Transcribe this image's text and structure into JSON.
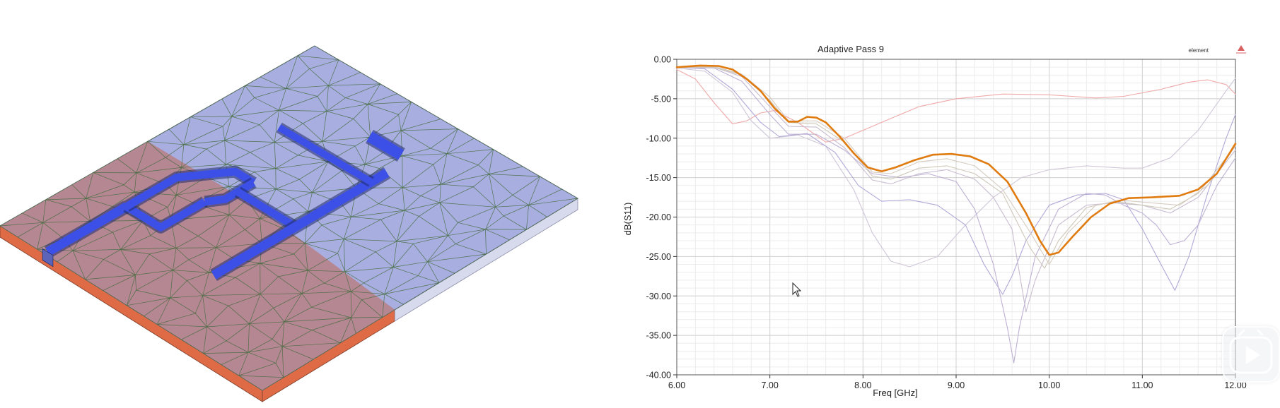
{
  "colors": {
    "substrate_top": "#a9aee0",
    "ground_plane": "#b6838c",
    "substrate_edge": "#de6b45",
    "mesh_line": "#3f6a38",
    "microstrip": "#3c50e8",
    "final_curve": "#e07b10"
  },
  "icons": [
    "mouse-cursor-icon",
    "play-icon"
  ],
  "chart_data": {
    "type": "line",
    "title": "Adaptive Pass 9",
    "legend_label": "element",
    "legend_placement": "top-right",
    "xlabel": "Freq [GHz]",
    "ylabel": "dB(S11)",
    "xlim": [
      6.0,
      12.0
    ],
    "ylim": [
      -40.0,
      0.0
    ],
    "grid": true,
    "x_ticks": [
      "6.00",
      "7.00",
      "8.00",
      "9.00",
      "10.00",
      "11.00",
      "12.00"
    ],
    "y_ticks": [
      "0.00",
      "-5.00",
      "-10.00",
      "-15.00",
      "-20.00",
      "-25.00",
      "-30.00",
      "-35.00",
      "-40.00"
    ],
    "series": [
      {
        "color": "#f0a8a8",
        "width": 1.1,
        "final": false,
        "points": [
          [
            6.0,
            -1.3
          ],
          [
            6.2,
            -2.5
          ],
          [
            6.4,
            -5.5
          ],
          [
            6.6,
            -8.2
          ],
          [
            6.75,
            -7.8
          ],
          [
            6.9,
            -6.8
          ],
          [
            7.05,
            -6.5
          ],
          [
            7.3,
            -8.0
          ],
          [
            7.6,
            -10.5
          ],
          [
            7.8,
            -10.0
          ],
          [
            8.0,
            -9.0
          ],
          [
            8.3,
            -7.5
          ],
          [
            8.6,
            -6.0
          ],
          [
            9.0,
            -5.0
          ],
          [
            9.5,
            -4.4
          ],
          [
            10.0,
            -4.5
          ],
          [
            10.5,
            -4.9
          ],
          [
            10.8,
            -4.7
          ],
          [
            11.2,
            -3.8
          ],
          [
            11.5,
            -2.9
          ],
          [
            11.7,
            -2.6
          ],
          [
            11.9,
            -3.2
          ],
          [
            12.0,
            -4.4
          ]
        ]
      },
      {
        "color": "#cfc6d8",
        "width": 1.1,
        "final": false,
        "points": [
          [
            6.0,
            -1.1
          ],
          [
            6.3,
            -1.5
          ],
          [
            6.6,
            -4.2
          ],
          [
            6.8,
            -7.8
          ],
          [
            7.0,
            -10.0
          ],
          [
            7.3,
            -9.6
          ],
          [
            7.6,
            -11.0
          ],
          [
            7.9,
            -16.5
          ],
          [
            8.1,
            -22.0
          ],
          [
            8.3,
            -25.6
          ],
          [
            8.5,
            -26.3
          ],
          [
            8.8,
            -25.0
          ],
          [
            9.1,
            -21.0
          ],
          [
            9.4,
            -17.5
          ],
          [
            9.7,
            -15.0
          ],
          [
            10.0,
            -14.0
          ],
          [
            10.4,
            -13.5
          ],
          [
            10.8,
            -13.8
          ],
          [
            11.0,
            -13.8
          ],
          [
            11.3,
            -12.5
          ],
          [
            11.6,
            -9.0
          ],
          [
            11.9,
            -4.0
          ],
          [
            12.0,
            -2.4
          ]
        ]
      },
      {
        "color": "#b0a8d8",
        "width": 1.1,
        "final": false,
        "points": [
          [
            6.0,
            -1.0
          ],
          [
            6.3,
            -1.2
          ],
          [
            6.6,
            -3.8
          ],
          [
            6.9,
            -8.0
          ],
          [
            7.1,
            -9.8
          ],
          [
            7.4,
            -9.4
          ],
          [
            7.7,
            -11.8
          ],
          [
            7.95,
            -16.0
          ],
          [
            8.2,
            -18.0
          ],
          [
            8.5,
            -17.8
          ],
          [
            8.8,
            -18.5
          ],
          [
            9.1,
            -21.0
          ],
          [
            9.3,
            -26.0
          ],
          [
            9.5,
            -29.8
          ],
          [
            9.6,
            -27.5
          ],
          [
            9.75,
            -23.0
          ],
          [
            10.0,
            -18.5
          ],
          [
            10.3,
            -17.2
          ],
          [
            10.6,
            -17.0
          ],
          [
            10.8,
            -17.8
          ],
          [
            11.0,
            -21.5
          ],
          [
            11.2,
            -26.0
          ],
          [
            11.35,
            -29.3
          ],
          [
            11.5,
            -25.0
          ],
          [
            11.7,
            -17.0
          ],
          [
            11.9,
            -10.0
          ],
          [
            12.0,
            -7.0
          ]
        ]
      },
      {
        "color": "#bdb0d3",
        "width": 1.1,
        "final": false,
        "points": [
          [
            6.0,
            -1.0
          ],
          [
            6.4,
            -1.1
          ],
          [
            6.7,
            -2.8
          ],
          [
            7.0,
            -7.0
          ],
          [
            7.2,
            -9.5
          ],
          [
            7.5,
            -9.5
          ],
          [
            7.8,
            -11.5
          ],
          [
            8.1,
            -14.5
          ],
          [
            8.4,
            -15.0
          ],
          [
            8.7,
            -14.5
          ],
          [
            9.0,
            -15.5
          ],
          [
            9.2,
            -19.0
          ],
          [
            9.4,
            -26.0
          ],
          [
            9.55,
            -34.0
          ],
          [
            9.62,
            -38.5
          ],
          [
            9.68,
            -34.0
          ],
          [
            9.85,
            -25.0
          ],
          [
            10.1,
            -19.0
          ],
          [
            10.4,
            -17.0
          ],
          [
            10.6,
            -17.2
          ],
          [
            10.8,
            -18.5
          ],
          [
            11.0,
            -19.5
          ],
          [
            11.15,
            -21.0
          ],
          [
            11.3,
            -23.5
          ],
          [
            11.45,
            -23.0
          ],
          [
            11.6,
            -21.0
          ],
          [
            11.8,
            -16.0
          ],
          [
            12.0,
            -12.5
          ]
        ]
      },
      {
        "color": "#c8bcd0",
        "width": 1.1,
        "final": false,
        "points": [
          [
            6.0,
            -1.0
          ],
          [
            6.4,
            -1.0
          ],
          [
            6.7,
            -2.2
          ],
          [
            7.0,
            -6.0
          ],
          [
            7.2,
            -8.5
          ],
          [
            7.5,
            -8.6
          ],
          [
            7.8,
            -11.2
          ],
          [
            8.1,
            -15.3
          ],
          [
            8.3,
            -15.8
          ],
          [
            8.6,
            -14.5
          ],
          [
            8.9,
            -14.0
          ],
          [
            9.2,
            -15.2
          ],
          [
            9.4,
            -17.5
          ],
          [
            9.6,
            -21.5
          ],
          [
            9.75,
            -32.0
          ],
          [
            9.85,
            -28.0
          ],
          [
            10.1,
            -21.0
          ],
          [
            10.4,
            -18.5
          ],
          [
            10.7,
            -18.2
          ],
          [
            11.0,
            -18.5
          ],
          [
            11.3,
            -19.5
          ],
          [
            11.6,
            -17.5
          ],
          [
            11.9,
            -13.0
          ],
          [
            12.0,
            -11.5
          ]
        ]
      },
      {
        "color": "#cec8b8",
        "width": 1.1,
        "final": false,
        "points": [
          [
            6.0,
            -1.0
          ],
          [
            6.4,
            -1.0
          ],
          [
            6.7,
            -2.0
          ],
          [
            7.0,
            -5.2
          ],
          [
            7.2,
            -8.0
          ],
          [
            7.5,
            -8.2
          ],
          [
            7.8,
            -10.5
          ],
          [
            8.1,
            -14.8
          ],
          [
            8.3,
            -15.2
          ],
          [
            8.6,
            -13.8
          ],
          [
            8.9,
            -13.5
          ],
          [
            9.2,
            -14.5
          ],
          [
            9.5,
            -17.0
          ],
          [
            9.8,
            -24.0
          ],
          [
            9.95,
            -26.5
          ],
          [
            10.1,
            -23.0
          ],
          [
            10.4,
            -18.8
          ],
          [
            10.7,
            -18.0
          ],
          [
            11.0,
            -18.5
          ],
          [
            11.3,
            -19.0
          ],
          [
            11.6,
            -17.0
          ],
          [
            11.9,
            -12.5
          ],
          [
            12.0,
            -11.0
          ]
        ]
      },
      {
        "color": "#d6ccc0",
        "width": 1.1,
        "final": false,
        "points": [
          [
            6.0,
            -1.0
          ],
          [
            6.4,
            -0.9
          ],
          [
            6.7,
            -1.9
          ],
          [
            7.0,
            -4.8
          ],
          [
            7.2,
            -7.8
          ],
          [
            7.5,
            -7.8
          ],
          [
            7.8,
            -10.0
          ],
          [
            8.1,
            -14.3
          ],
          [
            8.3,
            -14.5
          ],
          [
            8.6,
            -13.0
          ],
          [
            8.9,
            -12.6
          ],
          [
            9.2,
            -13.5
          ],
          [
            9.5,
            -16.5
          ],
          [
            9.8,
            -22.0
          ],
          [
            10.0,
            -26.0
          ],
          [
            10.2,
            -22.0
          ],
          [
            10.5,
            -18.5
          ],
          [
            10.8,
            -17.9
          ],
          [
            11.1,
            -18.2
          ],
          [
            11.4,
            -18.5
          ],
          [
            11.7,
            -16.0
          ],
          [
            12.0,
            -11.0
          ]
        ]
      },
      {
        "color": "#e07b10",
        "width": 2.6,
        "final": true,
        "points": [
          [
            6.0,
            -1.0
          ],
          [
            6.25,
            -0.8
          ],
          [
            6.45,
            -0.85
          ],
          [
            6.6,
            -1.3
          ],
          [
            6.75,
            -2.5
          ],
          [
            6.9,
            -4.0
          ],
          [
            7.05,
            -6.2
          ],
          [
            7.2,
            -7.9
          ],
          [
            7.3,
            -7.9
          ],
          [
            7.4,
            -7.3
          ],
          [
            7.5,
            -7.4
          ],
          [
            7.6,
            -8.0
          ],
          [
            7.75,
            -9.8
          ],
          [
            7.9,
            -11.9
          ],
          [
            8.05,
            -13.7
          ],
          [
            8.2,
            -14.2
          ],
          [
            8.35,
            -13.7
          ],
          [
            8.55,
            -12.8
          ],
          [
            8.75,
            -12.1
          ],
          [
            8.95,
            -12.0
          ],
          [
            9.15,
            -12.3
          ],
          [
            9.35,
            -13.3
          ],
          [
            9.55,
            -15.5
          ],
          [
            9.75,
            -19.5
          ],
          [
            9.9,
            -23.0
          ],
          [
            10.0,
            -24.8
          ],
          [
            10.1,
            -24.5
          ],
          [
            10.25,
            -22.5
          ],
          [
            10.45,
            -20.0
          ],
          [
            10.65,
            -18.3
          ],
          [
            10.85,
            -17.6
          ],
          [
            11.1,
            -17.5
          ],
          [
            11.4,
            -17.3
          ],
          [
            11.6,
            -16.5
          ],
          [
            11.8,
            -14.5
          ],
          [
            12.0,
            -10.7
          ]
        ]
      }
    ]
  }
}
